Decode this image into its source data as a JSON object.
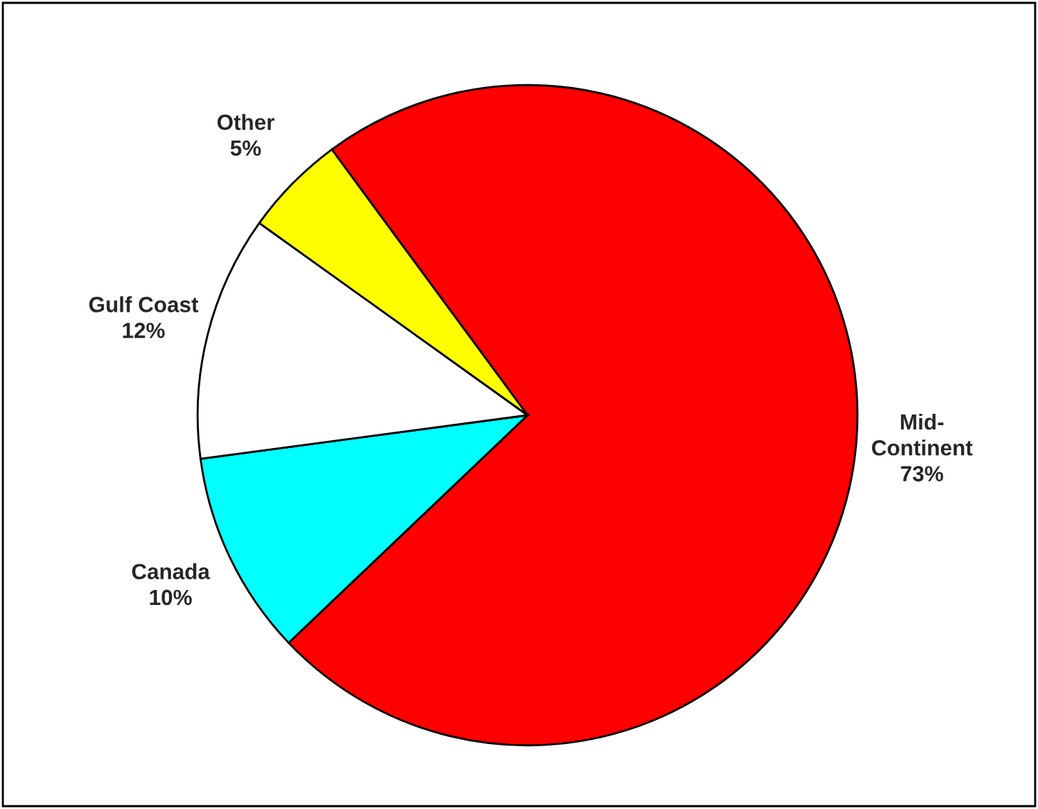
{
  "chart_data": {
    "type": "pie",
    "categories": [
      "Mid-Continent",
      "Canada",
      "Gulf Coast",
      "Other"
    ],
    "values": [
      73,
      10,
      12,
      5
    ],
    "value_labels": [
      "73%",
      "10%",
      "12%",
      "5%"
    ],
    "colors": [
      "#ff0000",
      "#00ffff",
      "#ffffff",
      "#ffff00"
    ]
  }
}
